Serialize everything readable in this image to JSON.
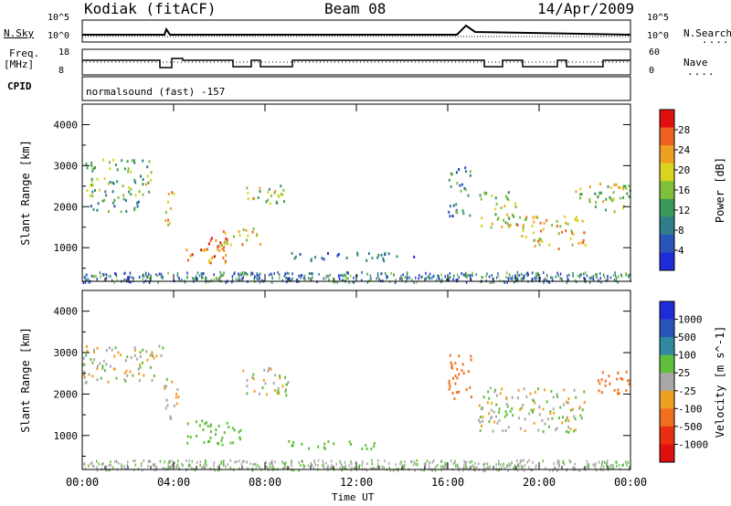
{
  "header": {
    "station": "Kodiak (fitACF)",
    "beam": "Beam 08",
    "date": "14/Apr/2009"
  },
  "top_panel": {
    "left_label": "N.Sky",
    "right_label": "N.Search",
    "left_ticks": [
      "10^5",
      "10^0"
    ],
    "right_ticks": [
      "10^5",
      "10^0"
    ]
  },
  "freq_panel": {
    "left_label_1": "Freq.",
    "left_label_2": "[MHz]",
    "right_label": "Nave",
    "left_ticks": [
      "18",
      "8"
    ],
    "right_ticks": [
      "60",
      "0"
    ]
  },
  "cpid": {
    "label": "CPID",
    "value": "normalsound (fast) -157"
  },
  "chart_data": [
    {
      "type": "heatmap",
      "title": "Power",
      "ylabel": "Slant Range [km]",
      "xlabel": "",
      "ylim": [
        180,
        4500
      ],
      "yticks": [
        "1000",
        "2000",
        "3000",
        "4000"
      ],
      "xticks": [
        "00:00",
        "04:00",
        "08:00",
        "12:00",
        "16:00",
        "20:00",
        "00:00"
      ],
      "colorbar": {
        "label": "Power [dB]",
        "ticks": [
          "4",
          "8",
          "12",
          "16",
          "20",
          "24",
          "28"
        ],
        "range": [
          0,
          30
        ]
      },
      "regions": [
        {
          "t0": 0.0,
          "t1": 3.0,
          "r0": 2300,
          "r1": 3200,
          "level": 14
        },
        {
          "t0": 0.3,
          "t1": 2.5,
          "r0": 1900,
          "r1": 2300,
          "level": 10
        },
        {
          "t0": 3.6,
          "t1": 4.0,
          "r0": 1400,
          "r1": 2400,
          "level": 22
        },
        {
          "t0": 4.5,
          "t1": 6.5,
          "r0": 650,
          "r1": 1300,
          "level": 24
        },
        {
          "t0": 6.0,
          "t1": 7.8,
          "r0": 1000,
          "r1": 1500,
          "level": 20
        },
        {
          "t0": 7.0,
          "t1": 9.0,
          "r0": 2100,
          "r1": 2600,
          "level": 16
        },
        {
          "t0": 9.0,
          "t1": 14.5,
          "r0": 700,
          "r1": 900,
          "level": 6
        },
        {
          "t0": 16.0,
          "t1": 17.0,
          "r0": 1800,
          "r1": 3000,
          "level": 8
        },
        {
          "t0": 17.3,
          "t1": 19.0,
          "r0": 1500,
          "r1": 2400,
          "level": 16
        },
        {
          "t0": 19.0,
          "t1": 22.0,
          "r0": 1000,
          "r1": 1800,
          "level": 20
        },
        {
          "t0": 21.5,
          "t1": 24.0,
          "r0": 1900,
          "r1": 2600,
          "level": 16
        }
      ]
    },
    {
      "type": "heatmap",
      "title": "Velocity",
      "ylabel": "Slant Range [km]",
      "xlabel": "Time UT",
      "ylim": [
        180,
        4500
      ],
      "yticks": [
        "1000",
        "2000",
        "3000",
        "4000"
      ],
      "xticks": [
        "00:00",
        "04:00",
        "08:00",
        "12:00",
        "16:00",
        "20:00",
        "00:00"
      ],
      "colorbar": {
        "label": "Velocity [m s^-1]",
        "ticks": [
          "1000",
          "500",
          "100",
          "25",
          "-25",
          "-100",
          "-500",
          "-1000"
        ]
      },
      "regions": [
        {
          "t0": 0.0,
          "t1": 3.5,
          "r0": 2300,
          "r1": 3200,
          "vel": 0
        },
        {
          "t0": 3.5,
          "t1": 4.2,
          "r0": 1400,
          "r1": 2400,
          "vel": 0
        },
        {
          "t0": 4.5,
          "t1": 7.0,
          "r0": 800,
          "r1": 1400,
          "vel": 150
        },
        {
          "t0": 7.0,
          "t1": 9.0,
          "r0": 2000,
          "r1": 2700,
          "vel": 0
        },
        {
          "t0": 9.0,
          "t1": 13.0,
          "r0": 700,
          "r1": 900,
          "vel": 150
        },
        {
          "t0": 16.0,
          "t1": 17.0,
          "r0": 1800,
          "r1": 3000,
          "vel": -200
        },
        {
          "t0": 17.3,
          "t1": 22.0,
          "r0": 1100,
          "r1": 2200,
          "vel": 0
        },
        {
          "t0": 22.5,
          "t1": 24.0,
          "r0": 2000,
          "r1": 2600,
          "vel": -300
        }
      ]
    }
  ]
}
